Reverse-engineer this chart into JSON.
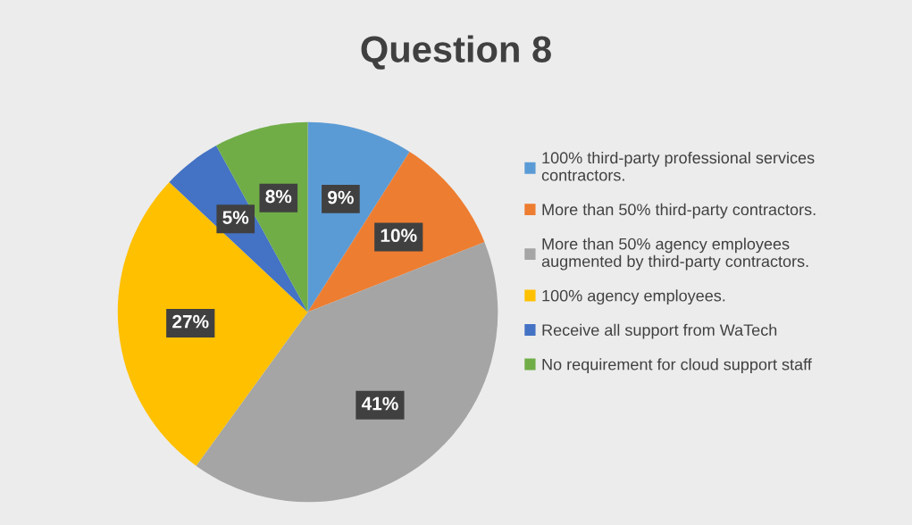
{
  "chart_data": {
    "type": "pie",
    "title": "Question 8",
    "categories": [
      "100% third-party professional services contractors.",
      "More than 50% third-party contractors.",
      "More than 50% agency employees augmented by third-party contractors.",
      "100% agency employees.",
      "Receive all support from WaTech",
      "No requirement for cloud support staff"
    ],
    "values": [
      9,
      10,
      41,
      27,
      5,
      8
    ],
    "colors": [
      "#5b9bd5",
      "#ed7d31",
      "#a5a5a5",
      "#ffc000",
      "#4472c4",
      "#70ad47"
    ],
    "value_labels": [
      "9%",
      "10%",
      "41%",
      "27%",
      "5%",
      "8%"
    ],
    "legend": "right"
  }
}
